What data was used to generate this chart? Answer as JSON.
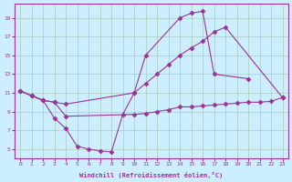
{
  "xlabel": "Windchill (Refroidissement éolien,°C)",
  "background_color": "#cceeff",
  "grid_color": "#aaccbb",
  "line_color": "#993399",
  "marker": "D",
  "markersize": 2.5,
  "linewidth": 0.8,
  "xlim": [
    -0.5,
    23.5
  ],
  "ylim": [
    4.0,
    20.5
  ],
  "yticks": [
    5,
    7,
    9,
    11,
    13,
    15,
    17,
    19
  ],
  "xticks": [
    0,
    1,
    2,
    3,
    4,
    5,
    6,
    7,
    8,
    9,
    10,
    11,
    12,
    13,
    14,
    15,
    16,
    17,
    18,
    19,
    20,
    21,
    22,
    23
  ],
  "lines": [
    {
      "x": [
        0,
        1,
        2,
        3,
        4,
        5,
        6,
        7,
        8,
        9,
        10,
        11,
        14,
        15,
        16,
        17,
        20
      ],
      "y": [
        11.2,
        10.7,
        10.2,
        8.3,
        7.2,
        5.3,
        5.0,
        4.8,
        4.7,
        8.7,
        11.0,
        15.0,
        19.0,
        19.5,
        19.7,
        13.0,
        12.5
      ]
    },
    {
      "x": [
        0,
        1,
        2,
        3,
        4,
        10,
        11,
        12,
        13,
        14,
        15,
        16,
        17,
        18,
        23
      ],
      "y": [
        11.2,
        10.7,
        10.2,
        10.0,
        9.8,
        11.0,
        12.0,
        13.0,
        14.0,
        15.0,
        15.8,
        16.5,
        17.5,
        18.0,
        10.5
      ]
    },
    {
      "x": [
        0,
        1,
        2,
        3,
        4,
        10,
        11,
        12,
        13,
        14,
        15,
        16,
        17,
        18,
        19,
        20,
        21,
        22,
        23
      ],
      "y": [
        11.2,
        10.7,
        10.2,
        10.0,
        8.5,
        8.7,
        8.8,
        9.0,
        9.2,
        9.5,
        9.5,
        9.6,
        9.7,
        9.8,
        9.9,
        10.0,
        10.0,
        10.1,
        10.5
      ]
    }
  ]
}
